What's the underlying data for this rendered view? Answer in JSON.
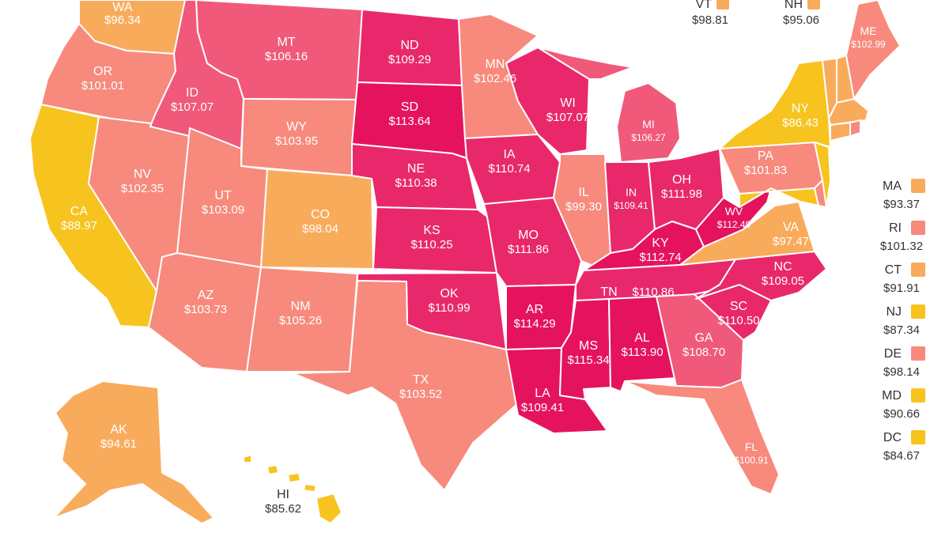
{
  "colors": {
    "yellow": "#f7c31f",
    "light_orange": "#f9ab5c",
    "salmon": "#f78a7c",
    "pink": "#f0597a",
    "deep_pink": "#e9286b",
    "magenta": "#e5135d",
    "border": "#ffffff",
    "text": "#333333"
  },
  "states": {
    "WA": {
      "code": "WA",
      "value": "$96.34"
    },
    "OR": {
      "code": "OR",
      "value": "$101.01"
    },
    "CA": {
      "code": "CA",
      "value": "$88.97"
    },
    "NV": {
      "code": "NV",
      "value": "$102.35"
    },
    "ID": {
      "code": "ID",
      "value": "$107.07"
    },
    "MT": {
      "code": "MT",
      "value": "$106.16"
    },
    "WY": {
      "code": "WY",
      "value": "$103.95"
    },
    "UT": {
      "code": "UT",
      "value": "$103.09"
    },
    "CO": {
      "code": "CO",
      "value": "$98.04"
    },
    "AZ": {
      "code": "AZ",
      "value": "$103.73"
    },
    "NM": {
      "code": "NM",
      "value": "$105.26"
    },
    "ND": {
      "code": "ND",
      "value": "$109.29"
    },
    "SD": {
      "code": "SD",
      "value": "$113.64"
    },
    "NE": {
      "code": "NE",
      "value": "$110.38"
    },
    "KS": {
      "code": "KS",
      "value": "$110.25"
    },
    "OK": {
      "code": "OK",
      "value": "$110.99"
    },
    "TX": {
      "code": "TX",
      "value": "$103.52"
    },
    "MN": {
      "code": "MN",
      "value": "$102.46"
    },
    "IA": {
      "code": "IA",
      "value": "$110.74"
    },
    "MO": {
      "code": "MO",
      "value": "$111.86"
    },
    "AR": {
      "code": "AR",
      "value": "$114.29"
    },
    "LA": {
      "code": "LA",
      "value": "$109.41"
    },
    "WI": {
      "code": "WI",
      "value": "$107.07"
    },
    "IL": {
      "code": "IL",
      "value": "$99.30"
    },
    "MI": {
      "code": "MI",
      "value": "$106.27"
    },
    "IN": {
      "code": "IN",
      "value": "$109.41"
    },
    "OH": {
      "code": "OH",
      "value": "$111.98"
    },
    "KY": {
      "code": "KY",
      "value": "$112.74"
    },
    "TN": {
      "code": "TN",
      "value": "$110.86"
    },
    "MS": {
      "code": "MS",
      "value": "$115.34"
    },
    "AL": {
      "code": "AL",
      "value": "$113.90"
    },
    "GA": {
      "code": "GA",
      "value": "$108.70"
    },
    "FL": {
      "code": "FL",
      "value": "$100.91"
    },
    "SC": {
      "code": "SC",
      "value": "$110.50"
    },
    "NC": {
      "code": "NC",
      "value": "$109.05"
    },
    "VA": {
      "code": "VA",
      "value": "$97.47"
    },
    "WV": {
      "code": "WV",
      "value": "$112.49"
    },
    "PA": {
      "code": "PA",
      "value": "$101.83"
    },
    "NY": {
      "code": "NY",
      "value": "$86.43"
    },
    "ME": {
      "code": "ME",
      "value": "$102.99"
    },
    "AK": {
      "code": "AK",
      "value": "$94.61"
    },
    "HI": {
      "code": "HI",
      "value": "$85.62"
    }
  },
  "top_keys": [
    {
      "code": "VT",
      "value": "$98.81",
      "color": "#f9ab5c"
    },
    {
      "code": "NH",
      "value": "$95.06",
      "color": "#f9ab5c"
    }
  ],
  "side_keys": [
    {
      "code": "MA",
      "value": "$93.37",
      "color": "#f9ab5c"
    },
    {
      "code": "RI",
      "value": "$101.32",
      "color": "#f78a7c"
    },
    {
      "code": "CT",
      "value": "$91.91",
      "color": "#f9ab5c"
    },
    {
      "code": "NJ",
      "value": "$87.34",
      "color": "#f7c31f"
    },
    {
      "code": "DE",
      "value": "$98.14",
      "color": "#f78a7c"
    },
    {
      "code": "MD",
      "value": "$90.66",
      "color": "#f7c31f"
    },
    {
      "code": "DC",
      "value": "$84.67",
      "color": "#f7c31f"
    }
  ]
}
